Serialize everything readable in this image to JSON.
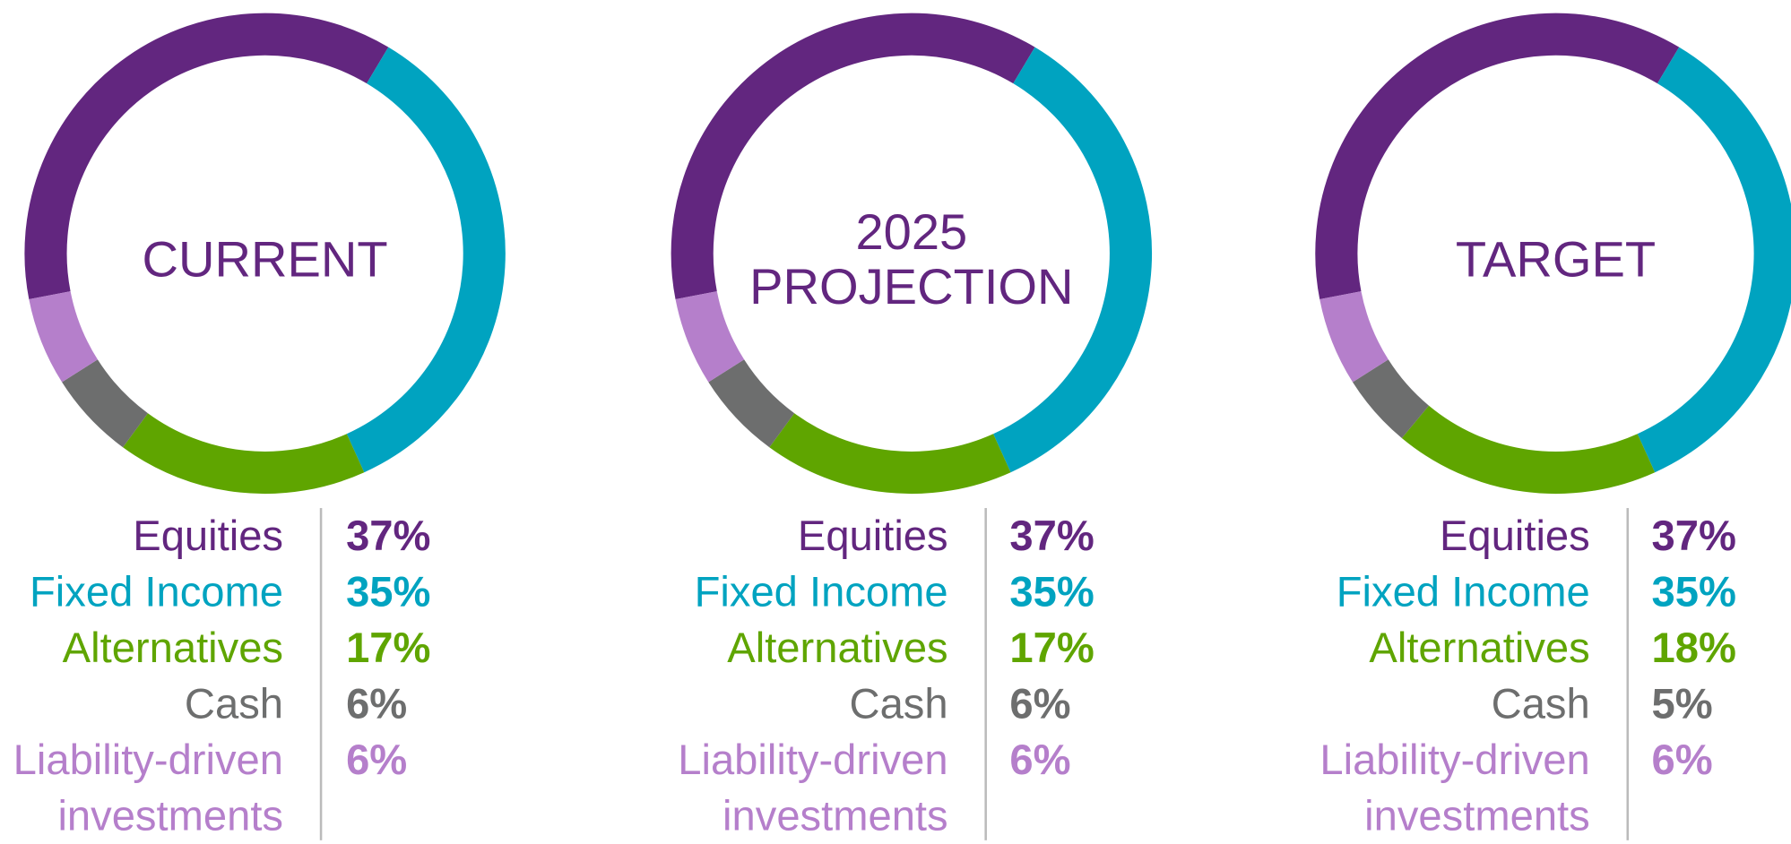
{
  "chart_data": [
    {
      "type": "donut",
      "title": "CURRENT",
      "categories": [
        "Equities",
        "Fixed Income",
        "Alternatives",
        "Cash",
        "Liability-driven investments"
      ],
      "values": [
        37,
        35,
        17,
        6,
        6
      ],
      "value_labels": [
        "37%",
        "35%",
        "17%",
        "6%",
        "6%"
      ],
      "colors": [
        "#62267f",
        "#00a3c0",
        "#5fa500",
        "#6d6e6e",
        "#b57fcb"
      ]
    },
    {
      "type": "donut",
      "title": "2025 PROJECTION",
      "categories": [
        "Equities",
        "Fixed Income",
        "Alternatives",
        "Cash",
        "Liability-driven investments"
      ],
      "values": [
        37,
        35,
        17,
        6,
        6
      ],
      "value_labels": [
        "37%",
        "35%",
        "17%",
        "6%",
        "6%"
      ],
      "colors": [
        "#62267f",
        "#00a3c0",
        "#5fa500",
        "#6d6e6e",
        "#b57fcb"
      ]
    },
    {
      "type": "donut",
      "title": "TARGET",
      "categories": [
        "Equities",
        "Fixed Income",
        "Alternatives",
        "Cash",
        "Liability-driven investments"
      ],
      "values": [
        37,
        35,
        18,
        5,
        6
      ],
      "value_labels": [
        "37%",
        "35%",
        "18%",
        "5%",
        "6%"
      ],
      "colors": [
        "#62267f",
        "#00a3c0",
        "#5fa500",
        "#6d6e6e",
        "#b57fcb"
      ]
    }
  ]
}
